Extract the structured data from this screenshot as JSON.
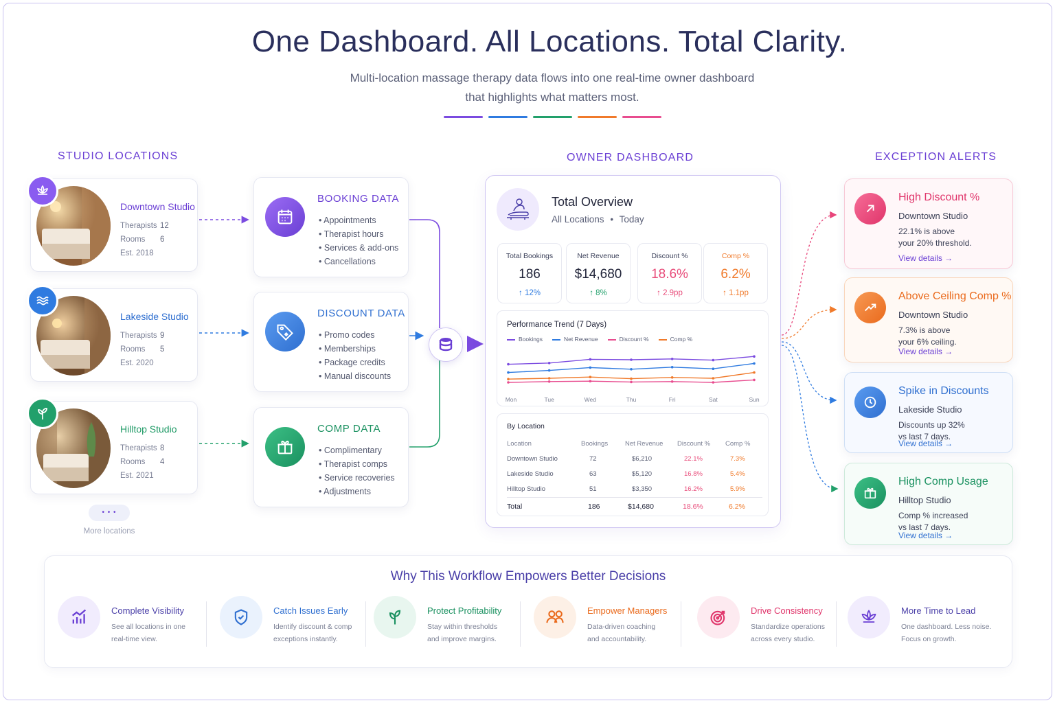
{
  "header": {
    "title": "One Dashboard. All Locations. Total Clarity.",
    "subtitle_line1": "Multi-location massage therapy data flows into one real-time owner dashboard",
    "subtitle_line2": "that highlights what matters most."
  },
  "accent_colors": [
    "#7b4be0",
    "#2f7be0",
    "#22a06b",
    "#f07a2b",
    "#e84c8f"
  ],
  "studios": {
    "heading": "STUDIO LOCATIONS",
    "items": [
      {
        "name": "Downtown Studio",
        "therapists_label": "Therapists",
        "therapists": "12",
        "rooms_label": "Rooms",
        "rooms": "6",
        "est": "Est. 2018",
        "icon": "lotus-icon",
        "color": "#8a5cf0"
      },
      {
        "name": "Lakeside Studio",
        "therapists_label": "Therapists",
        "therapists": "9",
        "rooms_label": "Rooms",
        "rooms": "5",
        "est": "Est. 2020",
        "icon": "waves-icon",
        "color": "#2f7be0"
      },
      {
        "name": "Hilltop Studio",
        "therapists_label": "Therapists",
        "therapists": "8",
        "rooms_label": "Rooms",
        "rooms": "4",
        "est": "Est. 2021",
        "icon": "leaf-icon",
        "color": "#22a06b"
      }
    ],
    "more_dots": "• • •",
    "more_label": "More locations"
  },
  "data_sources": [
    {
      "title": "BOOKING DATA",
      "icon": "calendar-icon",
      "color": "#7b4be0",
      "items": [
        "Appointments",
        "Therapist hours",
        "Services & add-ons",
        "Cancellations"
      ]
    },
    {
      "title": "DISCOUNT DATA",
      "icon": "tag-icon",
      "color": "#2f7be0",
      "items": [
        "Promo codes",
        "Memberships",
        "Package credits",
        "Manual discounts"
      ]
    },
    {
      "title": "COMP DATA",
      "icon": "gift-icon",
      "color": "#22a06b",
      "items": [
        "Complimentary",
        "Therapist comps",
        "Service recoveries",
        "Adjustments"
      ]
    }
  ],
  "dashboard": {
    "heading": "OWNER DASHBOARD",
    "title": "Total Overview",
    "scope": "All Locations",
    "period": "Today",
    "kpis": [
      {
        "label": "Total Bookings",
        "value": "186",
        "delta": "↑ 12%",
        "color": "#2b2f45",
        "delta_color": "#2f7be0"
      },
      {
        "label": "Net Revenue",
        "value": "$14,680",
        "delta": "↑ 8%",
        "color": "#2b2f45",
        "delta_color": "#22a06b"
      },
      {
        "label": "Discount %",
        "value": "18.6%",
        "delta": "↑ 2.9pp",
        "color": "#e84c7a",
        "delta_color": "#e84c7a"
      },
      {
        "label": "Comp %",
        "value": "6.2%",
        "delta": "↑ 1.1pp",
        "color": "#f07a2b",
        "delta_color": "#f07a2b"
      }
    ],
    "trend": {
      "title": "Performance Trend (7 Days)",
      "legend": [
        {
          "name": "Bookings",
          "color": "#7b4be0"
        },
        {
          "name": "Net Revenue",
          "color": "#2f7be0"
        },
        {
          "name": "Discount %",
          "color": "#e84c8f"
        },
        {
          "name": "Comp %",
          "color": "#f07a2b"
        }
      ],
      "days": [
        "Mon",
        "Tue",
        "Wed",
        "Thu",
        "Fri",
        "Sat",
        "Sun"
      ]
    },
    "table": {
      "title": "By Location",
      "columns": [
        "Location",
        "Bookings",
        "Net Revenue",
        "Discount %",
        "Comp %"
      ],
      "rows": [
        [
          "Downtown Studio",
          "72",
          "$6,210",
          "22.1%",
          "7.3%"
        ],
        [
          "Lakeside Studio",
          "63",
          "$5,120",
          "16.8%",
          "5.4%"
        ],
        [
          "Hilltop Studio",
          "51",
          "$3,350",
          "16.2%",
          "5.9%"
        ]
      ],
      "total": [
        "Total",
        "186",
        "$14,680",
        "18.6%",
        "6.2%"
      ]
    }
  },
  "chart_data": {
    "type": "line",
    "title": "Performance Trend (7 Days)",
    "categories": [
      "Mon",
      "Tue",
      "Wed",
      "Thu",
      "Fri",
      "Sat",
      "Sun"
    ],
    "series": [
      {
        "name": "Bookings",
        "values": [
          0.64,
          0.67,
          0.76,
          0.75,
          0.77,
          0.74,
          0.83
        ]
      },
      {
        "name": "Net Revenue",
        "values": [
          0.44,
          0.49,
          0.56,
          0.52,
          0.57,
          0.53,
          0.66
        ]
      },
      {
        "name": "Discount %",
        "values": [
          0.2,
          0.22,
          0.23,
          0.21,
          0.22,
          0.2,
          0.26
        ]
      },
      {
        "name": "Comp %",
        "values": [
          0.28,
          0.3,
          0.33,
          0.29,
          0.32,
          0.3,
          0.44
        ]
      }
    ]
  },
  "alerts": {
    "heading": "EXCEPTION ALERTS",
    "items": [
      {
        "title": "High Discount %",
        "studio": "Downtown Studio",
        "line1": "22.1% is above",
        "line2": "your 20% threshold.",
        "link": "View details →",
        "icon": "arrow-up-right-icon",
        "color": "#e8457a",
        "bg": "#fff7f9",
        "border": "#f7c9d6"
      },
      {
        "title": "Above Ceiling Comp %",
        "studio": "Downtown Studio",
        "line1": "7.3% is above",
        "line2": "your 6% ceiling.",
        "link": "View details →",
        "icon": "trend-up-icon",
        "color": "#f07a2b",
        "bg": "#fff9f4",
        "border": "#f9d6bb"
      },
      {
        "title": "Spike in Discounts",
        "studio": "Lakeside Studio",
        "line1": "Discounts up 32%",
        "line2": "vs last 7 days.",
        "link": "View details →",
        "icon": "clock-icon",
        "color": "#2f7be0",
        "bg": "#f6f9ff",
        "border": "#cfdff5"
      },
      {
        "title": "High Comp Usage",
        "studio": "Hilltop Studio",
        "line1": "Comp % increased",
        "line2": "vs last 7 days.",
        "link": "View details →",
        "icon": "gift-icon",
        "color": "#22a06b",
        "bg": "#f6fcf9",
        "border": "#cde9da"
      }
    ]
  },
  "benefits": {
    "title": "Why This Workflow Empowers Better Decisions",
    "items": [
      {
        "title": "Complete Visibility",
        "line1": "See all locations in one",
        "line2": "real-time view.",
        "icon": "bar-chart-icon",
        "color": "#6a3fd4",
        "bg": "#f1ecfd"
      },
      {
        "title": "Catch Issues Early",
        "line1": "Identify discount & comp",
        "line2": "exceptions instantly.",
        "icon": "shield-check-icon",
        "color": "#2f7be0",
        "bg": "#eaf2fd"
      },
      {
        "title": "Protect Profitability",
        "line1": "Stay within thresholds",
        "line2": "and improve margins.",
        "icon": "leaf-icon",
        "color": "#22a06b",
        "bg": "#e8f6ef"
      },
      {
        "title": "Empower Managers",
        "line1": "Data-driven coaching",
        "line2": "and accountability.",
        "icon": "users-icon",
        "color": "#f07a2b",
        "bg": "#fdf0e6"
      },
      {
        "title": "Drive Consistency",
        "line1": "Standardize operations",
        "line2": "across every studio.",
        "icon": "target-icon",
        "color": "#e8457a",
        "bg": "#fdeaf0"
      },
      {
        "title": "More Time to Lead",
        "line1": "One dashboard. Less noise.",
        "line2": "Focus on growth.",
        "icon": "lotus-icon",
        "color": "#6a3fd4",
        "bg": "#f1ecfd"
      }
    ]
  }
}
